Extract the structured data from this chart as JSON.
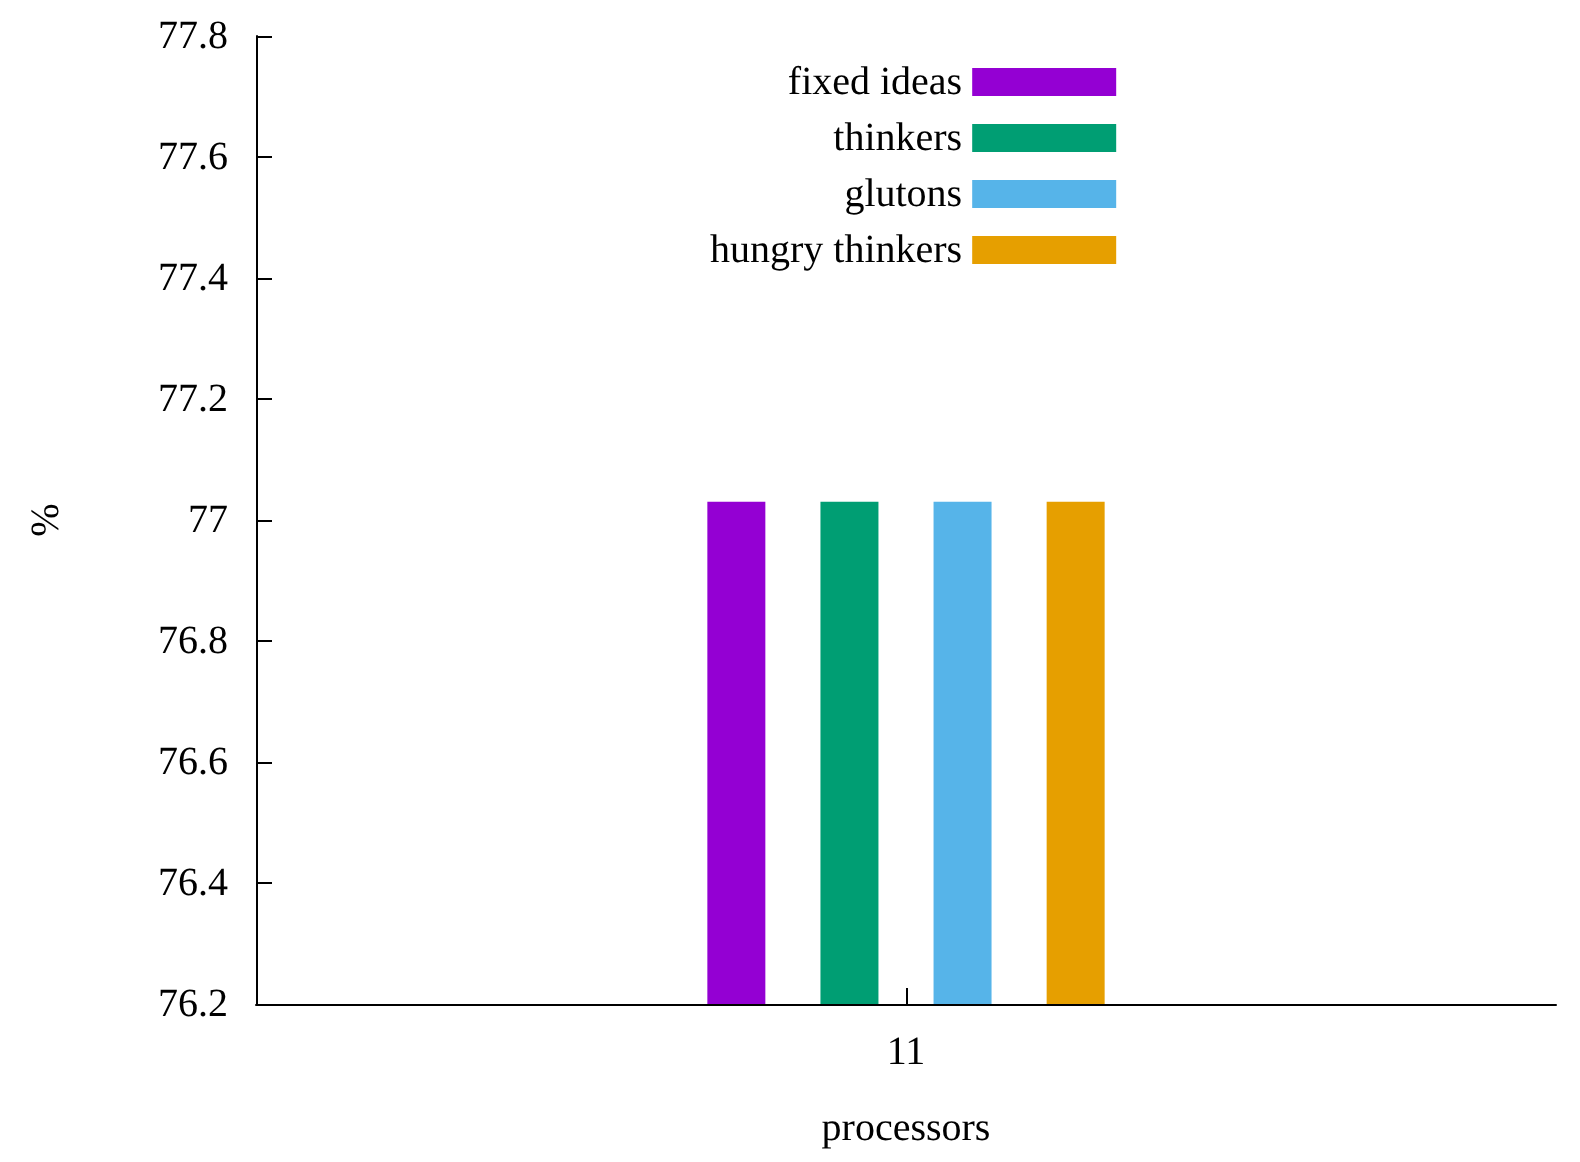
{
  "chart_data": {
    "type": "bar",
    "categories": [
      "11"
    ],
    "xlabel": "processors",
    "ylabel": "%",
    "series": [
      {
        "name": "fixed ideas",
        "color": "#9400d3",
        "values": [
          77.03
        ]
      },
      {
        "name": "thinkers",
        "color": "#009e73",
        "values": [
          77.03
        ]
      },
      {
        "name": "glutons",
        "color": "#56b4e9",
        "values": [
          77.03
        ]
      },
      {
        "name": "hungry thinkers",
        "color": "#e69f00",
        "values": [
          77.03
        ]
      }
    ],
    "ylim": [
      76.2,
      77.8
    ],
    "yticks": [
      76.2,
      76.4,
      76.6,
      76.8,
      77,
      77.2,
      77.4,
      77.6,
      77.8
    ],
    "grid": false,
    "legend": "top"
  }
}
